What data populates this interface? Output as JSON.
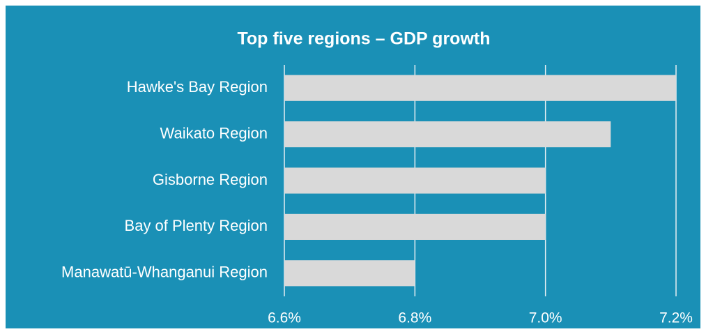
{
  "chart_data": {
    "type": "bar",
    "orientation": "horizontal",
    "title": "Top five regions – GDP growth",
    "categories": [
      "Hawke's Bay Region",
      "Waikato Region",
      "Gisborne Region",
      "Bay of Plenty Region",
      "Manawatū-Whanganui Region"
    ],
    "values": [
      7.2,
      7.1,
      7.0,
      7.0,
      6.8
    ],
    "color": "#d9d9d9",
    "xlim": [
      6.6,
      7.2
    ],
    "xticks": [
      {
        "value": 6.6,
        "label": "6.6%"
      },
      {
        "value": 6.8,
        "label": "6.8%"
      },
      {
        "value": 7.0,
        "label": "7.0%"
      },
      {
        "value": 7.2,
        "label": "7.2%"
      }
    ],
    "grid": true
  }
}
